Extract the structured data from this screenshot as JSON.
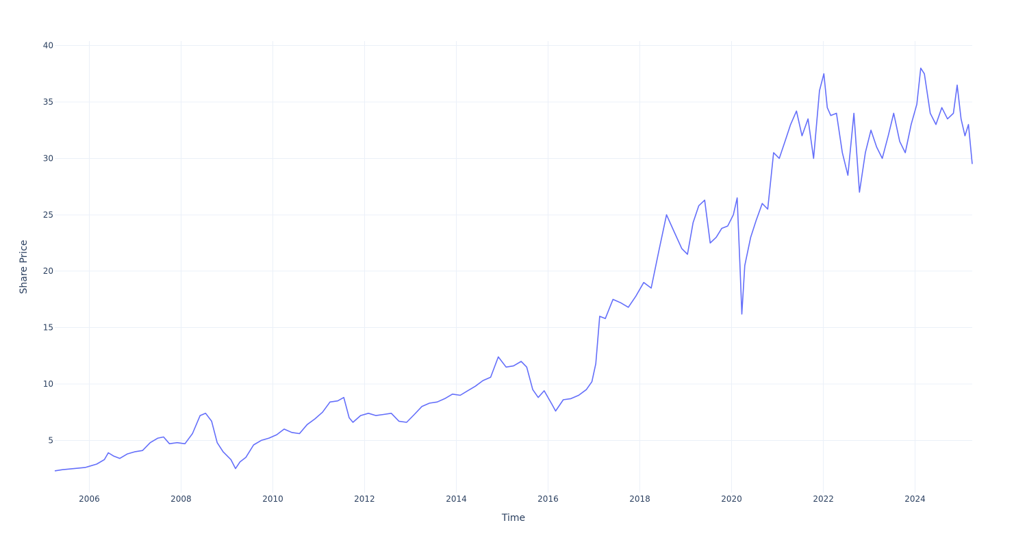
{
  "chart_data": {
    "type": "line",
    "title": "",
    "xlabel": "Time",
    "ylabel": "Share Price",
    "x_axis": {
      "type": "date",
      "range": [
        "2005-04-01",
        "2025-03-31"
      ],
      "tick_labels": [
        "2006",
        "2008",
        "2010",
        "2012",
        "2014",
        "2016",
        "2018",
        "2020",
        "2022",
        "2024"
      ],
      "tick_dates": [
        "2006-01-01",
        "2008-01-01",
        "2010-01-01",
        "2012-01-01",
        "2014-01-01",
        "2016-01-01",
        "2018-01-01",
        "2020-01-01",
        "2022-01-01",
        "2024-01-01"
      ]
    },
    "y_axis": {
      "range": [
        0.35,
        40.4
      ],
      "tick_values": [
        5,
        10,
        15,
        20,
        25,
        30,
        35,
        40
      ],
      "tick_labels": [
        "5",
        "10",
        "15",
        "20",
        "25",
        "30",
        "35",
        "40"
      ]
    },
    "grid": true,
    "legend": "none",
    "colors": {
      "line": "#636efa",
      "grid": "#ebf0f8",
      "text": "#2a3f5f",
      "background": "#ffffff"
    },
    "series": [
      {
        "x": [
          "2005-04-01",
          "2005-06-01",
          "2005-09-01",
          "2005-12-01",
          "2006-03-01",
          "2006-05-01",
          "2006-06-01",
          "2006-07-15",
          "2006-09-01",
          "2006-11-01",
          "2007-01-01",
          "2007-03-01",
          "2007-05-01",
          "2007-07-01",
          "2007-08-15",
          "2007-10-01",
          "2007-12-01",
          "2008-02-01",
          "2008-04-01",
          "2008-06-01",
          "2008-07-15",
          "2008-09-01",
          "2008-10-15",
          "2008-12-01",
          "2009-02-01",
          "2009-03-10",
          "2009-04-15",
          "2009-06-01",
          "2009-08-01",
          "2009-10-01",
          "2009-12-01",
          "2010-02-01",
          "2010-04-01",
          "2010-06-01",
          "2010-08-01",
          "2010-10-01",
          "2010-12-01",
          "2011-02-01",
          "2011-04-01",
          "2011-06-01",
          "2011-07-20",
          "2011-09-01",
          "2011-10-01",
          "2011-12-01",
          "2012-02-01",
          "2012-04-01",
          "2012-06-01",
          "2012-08-01",
          "2012-10-01",
          "2012-12-01",
          "2013-02-01",
          "2013-04-01",
          "2013-06-01",
          "2013-08-01",
          "2013-10-01",
          "2013-12-01",
          "2014-02-01",
          "2014-04-01",
          "2014-06-01",
          "2014-08-01",
          "2014-10-01",
          "2014-12-01",
          "2015-02-01",
          "2015-04-01",
          "2015-06-01",
          "2015-07-15",
          "2015-09-01",
          "2015-10-15",
          "2015-12-01",
          "2016-02-01",
          "2016-03-01",
          "2016-05-01",
          "2016-07-01",
          "2016-09-01",
          "2016-11-01",
          "2016-12-15",
          "2017-01-15",
          "2017-02-15",
          "2017-04-01",
          "2017-06-01",
          "2017-08-01",
          "2017-10-01",
          "2017-12-01",
          "2018-02-01",
          "2018-04-01",
          "2018-06-01",
          "2018-08-01",
          "2018-10-01",
          "2018-12-01",
          "2019-01-15",
          "2019-03-01",
          "2019-04-15",
          "2019-06-01",
          "2019-07-15",
          "2019-09-01",
          "2019-10-15",
          "2019-12-01",
          "2020-01-15",
          "2020-02-15",
          "2020-03-10",
          "2020-03-23",
          "2020-04-15",
          "2020-06-01",
          "2020-07-15",
          "2020-09-01",
          "2020-10-15",
          "2020-12-01",
          "2021-01-15",
          "2021-03-01",
          "2021-04-15",
          "2021-06-01",
          "2021-07-15",
          "2021-09-01",
          "2021-10-15",
          "2021-12-01",
          "2022-01-05",
          "2022-02-01",
          "2022-03-01",
          "2022-04-15",
          "2022-06-01",
          "2022-07-15",
          "2022-09-01",
          "2022-10-15",
          "2022-12-01",
          "2023-01-15",
          "2023-03-01",
          "2023-04-15",
          "2023-06-01",
          "2023-07-15",
          "2023-09-01",
          "2023-10-15",
          "2023-12-01",
          "2024-01-15",
          "2024-02-15",
          "2024-03-15",
          "2024-05-01",
          "2024-06-15",
          "2024-08-01",
          "2024-09-15",
          "2024-11-01",
          "2024-12-01",
          "2025-01-01",
          "2025-02-01",
          "2025-03-01",
          "2025-03-31"
        ],
        "y": [
          2.3,
          2.4,
          2.5,
          2.6,
          2.9,
          3.3,
          3.9,
          3.6,
          3.4,
          3.8,
          4.0,
          4.1,
          4.8,
          5.2,
          5.3,
          4.7,
          4.8,
          4.7,
          5.6,
          7.2,
          7.4,
          6.7,
          4.8,
          4.0,
          3.3,
          2.5,
          3.1,
          3.5,
          4.6,
          5.0,
          5.2,
          5.5,
          6.0,
          5.7,
          5.6,
          6.4,
          6.9,
          7.5,
          8.4,
          8.5,
          8.8,
          7.0,
          6.6,
          7.2,
          7.4,
          7.2,
          7.3,
          7.4,
          6.7,
          6.6,
          7.3,
          8.0,
          8.3,
          8.4,
          8.7,
          9.1,
          9.0,
          9.4,
          9.8,
          10.3,
          10.6,
          12.4,
          11.5,
          11.6,
          12.0,
          11.5,
          9.5,
          8.8,
          9.4,
          8.2,
          7.6,
          8.6,
          8.7,
          9.0,
          9.5,
          10.2,
          11.8,
          16.0,
          15.8,
          17.5,
          17.2,
          16.8,
          17.8,
          19.0,
          18.5,
          21.8,
          25.0,
          23.5,
          22.0,
          21.5,
          24.3,
          25.8,
          26.3,
          22.5,
          23.0,
          23.8,
          24.0,
          25.0,
          26.5,
          20.0,
          16.2,
          20.5,
          23.0,
          24.5,
          26.0,
          25.5,
          30.5,
          30.0,
          31.5,
          33.0,
          34.2,
          32.0,
          33.5,
          30.0,
          36.0,
          37.5,
          34.5,
          33.8,
          34.0,
          30.5,
          28.5,
          34.0,
          27.0,
          30.5,
          32.5,
          31.0,
          30.0,
          32.0,
          34.0,
          31.5,
          30.5,
          33.0,
          34.8,
          38.0,
          37.5,
          34.0,
          33.0,
          34.5,
          33.5,
          34.0,
          36.5,
          33.5,
          32.0,
          33.0,
          29.5
        ]
      }
    ]
  }
}
